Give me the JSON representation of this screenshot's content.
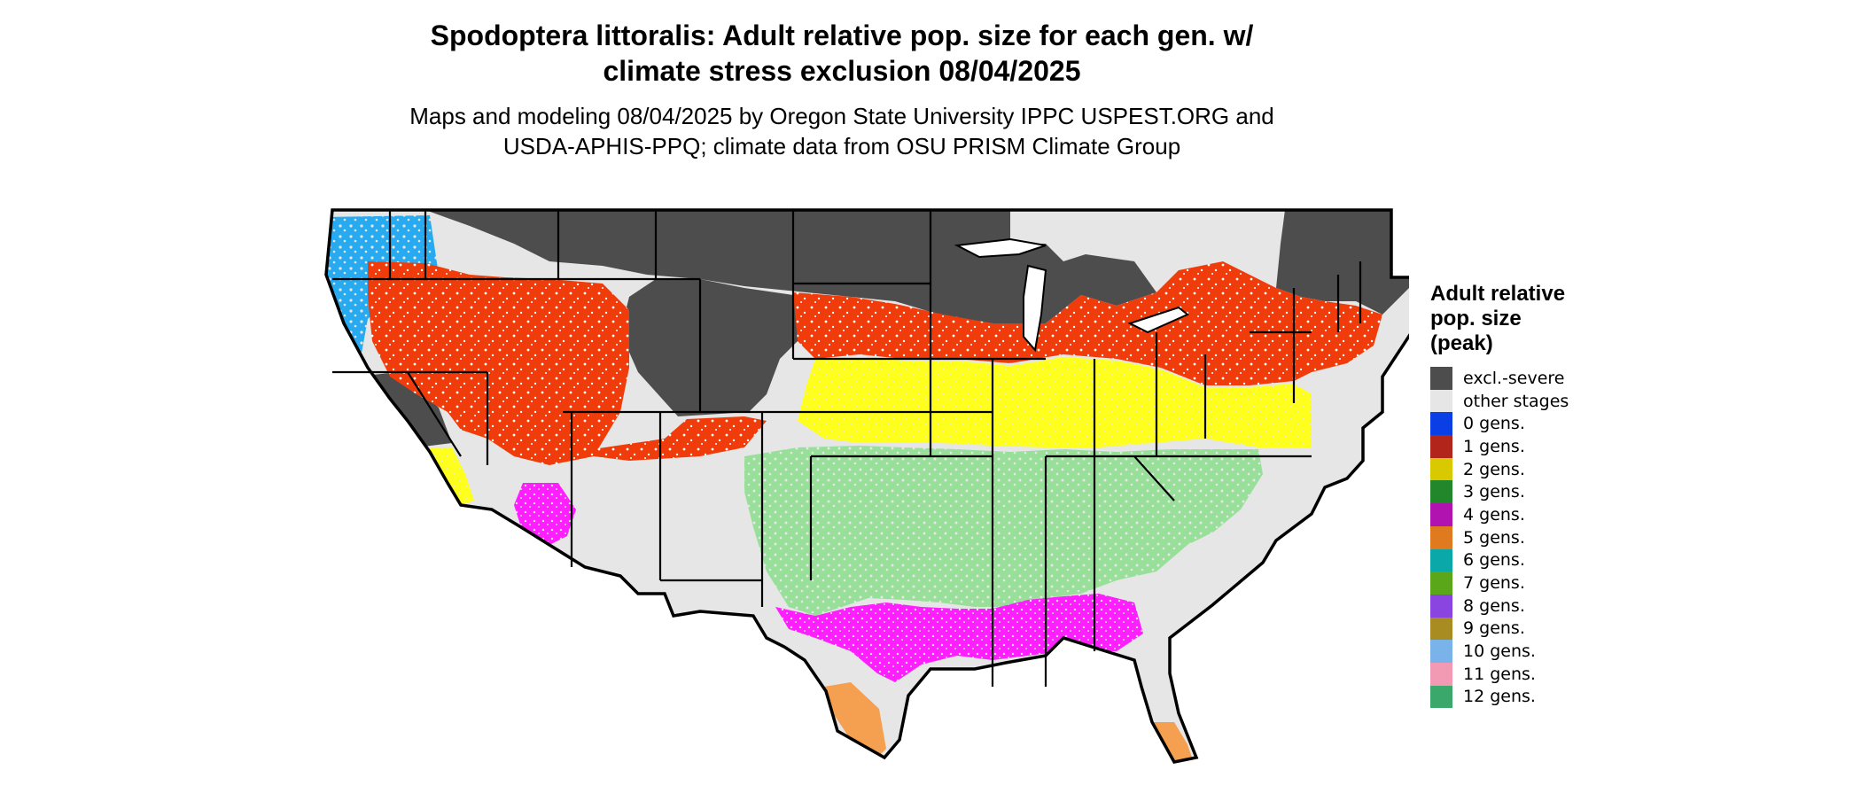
{
  "title": {
    "line1": "Spodoptera littoralis: Adult relative pop. size for each gen. w/",
    "line2": "climate stress exclusion 08/04/2025"
  },
  "subtitle": {
    "line1": "Maps and modeling 08/04/2025 by Oregon State University IPPC USPEST.ORG and",
    "line2": "USDA-APHIS-PPQ; climate data from OSU PRISM Climate Group"
  },
  "legend": {
    "title_lines": [
      "Adult relative",
      "pop. size",
      "(peak)"
    ],
    "items": [
      {
        "label": "excl.-severe",
        "color": "#4d4d4d"
      },
      {
        "label": "other stages",
        "color": "#e6e6e6"
      },
      {
        "label": "0 gens.",
        "color": "#0a3fe6"
      },
      {
        "label": "1 gens.",
        "color": "#b2251a"
      },
      {
        "label": "2 gens.",
        "color": "#d9c900"
      },
      {
        "label": "3 gens.",
        "color": "#22862a"
      },
      {
        "label": "4 gens.",
        "color": "#b013b0"
      },
      {
        "label": "5 gens.",
        "color": "#e07a1f"
      },
      {
        "label": "6 gens.",
        "color": "#0aa8a8"
      },
      {
        "label": "7 gens.",
        "color": "#5aa81a"
      },
      {
        "label": "8 gens.",
        "color": "#8a44e0"
      },
      {
        "label": "9 gens.",
        "color": "#a88c22"
      },
      {
        "label": "10 gens.",
        "color": "#7ab2ea"
      },
      {
        "label": "11 gens.",
        "color": "#f29ab4"
      },
      {
        "label": "12 gens.",
        "color": "#3aa86a"
      }
    ]
  },
  "map_colors": {
    "excluded": "#4d4d4d",
    "background": "#e6e6e6",
    "red_orange": "#f03c0a",
    "yellow": "#ffff1e",
    "light_green": "#98e09a",
    "magenta": "#ff1eff",
    "orange": "#f5a050",
    "cyan": "#28aaf0"
  }
}
